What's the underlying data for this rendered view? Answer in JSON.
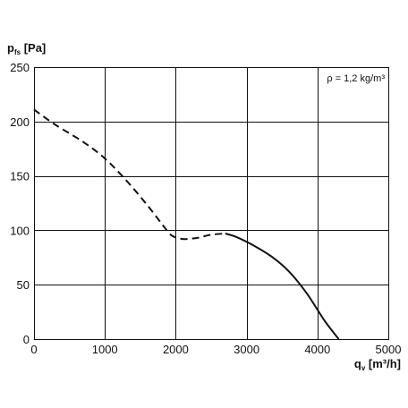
{
  "chart_data": {
    "type": "line",
    "xlabel_symbol": "q",
    "xlabel_sub": "v",
    "xlabel_unit": " [m³/h]",
    "ylabel_symbol": "p",
    "ylabel_sub": "fs",
    "ylabel_unit": " [Pa]",
    "annotation": "ρ = 1,2 kg/m³",
    "xlim": [
      0,
      5000
    ],
    "ylim": [
      0,
      250
    ],
    "x_ticks": [
      0,
      1000,
      2000,
      3000,
      4000,
      5000
    ],
    "y_ticks": [
      0,
      50,
      100,
      150,
      200,
      250
    ],
    "x_tick_labels": [
      "0",
      "1000",
      "2000",
      "3000",
      "4000",
      "5000"
    ],
    "y_tick_labels": [
      "0",
      "50",
      "100",
      "150",
      "200",
      "250"
    ],
    "grid": true,
    "series": [
      {
        "style": "dashed",
        "color": "#111111",
        "x": [
          0,
          300,
          700,
          1000,
          1300,
          1600,
          1850,
          1950,
          2100,
          2300,
          2500,
          2700
        ],
        "y": [
          211,
          197,
          181,
          166,
          146,
          123,
          102,
          95,
          92,
          93,
          96,
          97
        ]
      },
      {
        "style": "solid",
        "color": "#111111",
        "x": [
          2700,
          2850,
          3100,
          3350,
          3600,
          3850,
          4100,
          4300
        ],
        "y": [
          97,
          94,
          86,
          76,
          62,
          42,
          17,
          0
        ]
      }
    ]
  }
}
